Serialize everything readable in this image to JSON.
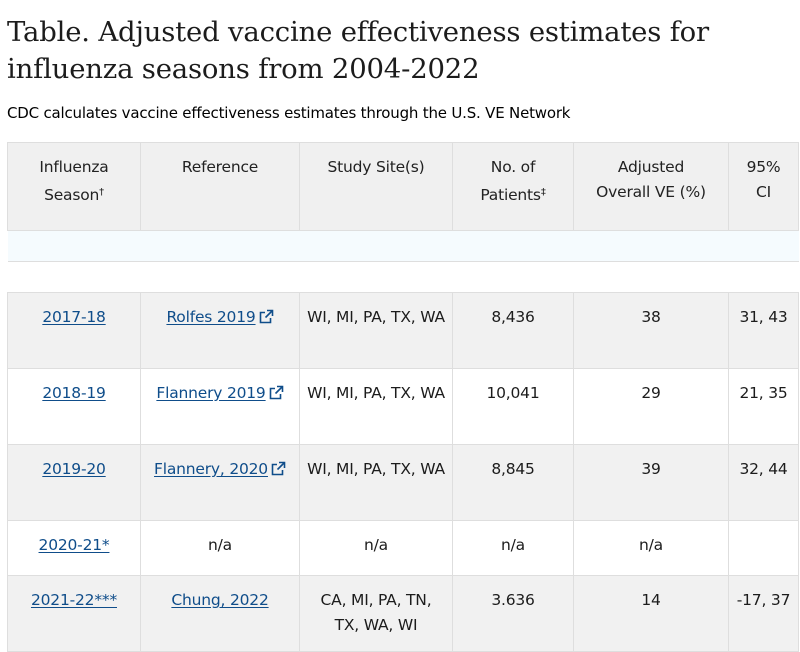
{
  "title": "Table. Adjusted vaccine effectiveness estimates for influenza seasons from 2004-2022",
  "subtitle": "CDC calculates vaccine effectiveness estimates through the U.S. VE Network",
  "link_color": "#0f4d8a",
  "header": {
    "season_line1": "Influenza",
    "season_line2": "Season",
    "season_mark": "†",
    "reference": "Reference",
    "site": "Study Site(s)",
    "patients_line1": "No. of",
    "patients_line2": "Patients",
    "patients_mark": "‡",
    "ve_line1": "Adjusted",
    "ve_line2": "Overall VE (%)",
    "ci_line1": "95%",
    "ci_line2": "CI"
  },
  "rows": [
    {
      "season": "2017-18",
      "reference": "Rolfes 2019",
      "external": true,
      "site": "WI, MI, PA, TX, WA",
      "patients": "8,436",
      "ve": "38",
      "ci": "31, 43"
    },
    {
      "season": "2018-19",
      "reference": "Flannery 2019",
      "external": true,
      "site": "WI, MI, PA, TX, WA",
      "patients": "10,041",
      "ve": "29",
      "ci": "21, 35"
    },
    {
      "season": "2019-20",
      "reference": "Flannery, 2020",
      "external": true,
      "site": "WI, MI, PA, TX, WA",
      "patients": "8,845",
      "ve": "39",
      "ci": "32, 44"
    },
    {
      "season": "2020-21*",
      "reference": "n/a",
      "external": false,
      "site": "n/a",
      "patients": "n/a",
      "ve": "n/a",
      "ci": ""
    },
    {
      "season": "2021-22***",
      "reference": "Chung, 2022",
      "external": false,
      "site": "CA, MI, PA, TN, TX, WA, WI",
      "patients": "3.636",
      "ve": "14",
      "ci": "-17, 37"
    }
  ],
  "icons": {
    "external": "external-link-icon"
  }
}
